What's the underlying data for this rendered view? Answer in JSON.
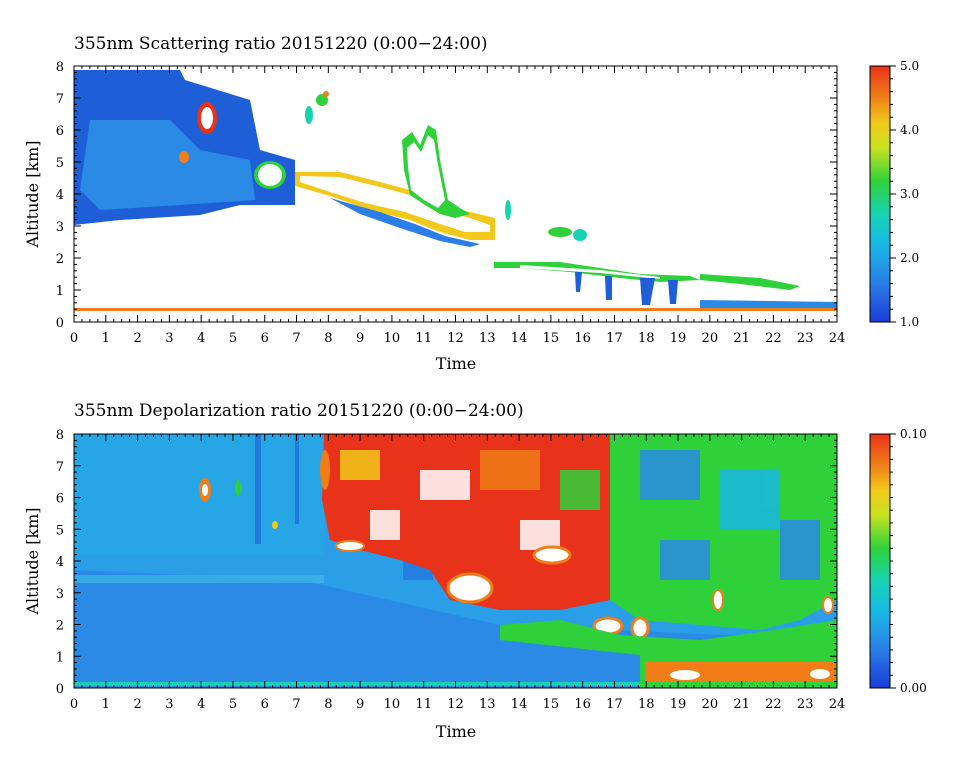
{
  "chart_data": [
    {
      "type": "heatmap",
      "title": "355nm Scattering ratio  20151220 (0:00−24:00)",
      "xlabel": "Time",
      "ylabel": "Altitude [km]",
      "xlim": [
        0,
        24
      ],
      "ylim": [
        0,
        8
      ],
      "x_ticks": [
        "0",
        "1",
        "2",
        "3",
        "4",
        "5",
        "6",
        "7",
        "8",
        "9",
        "10",
        "11",
        "12",
        "13",
        "14",
        "15",
        "16",
        "17",
        "18",
        "19",
        "20",
        "21",
        "22",
        "23",
        "24"
      ],
      "y_ticks": [
        "0",
        "1",
        "2",
        "3",
        "4",
        "5",
        "6",
        "7",
        "8"
      ],
      "colorbar": {
        "range": [
          1.0,
          5.0
        ],
        "tick_labels": [
          "1.0",
          "2.0",
          "3.0",
          "4.0",
          "5.0"
        ],
        "tick_values": [
          1.0,
          2.0,
          3.0,
          4.0,
          5.0
        ]
      }
    },
    {
      "type": "heatmap",
      "title": "355nm Depolarization ratio  20151220 (0:00−24:00)",
      "xlabel": "Time",
      "ylabel": "Altitude [km]",
      "xlim": [
        0,
        24
      ],
      "ylim": [
        0,
        8
      ],
      "x_ticks": [
        "0",
        "1",
        "2",
        "3",
        "4",
        "5",
        "6",
        "7",
        "8",
        "9",
        "10",
        "11",
        "12",
        "13",
        "14",
        "15",
        "16",
        "17",
        "18",
        "19",
        "20",
        "21",
        "22",
        "23",
        "24"
      ],
      "y_ticks": [
        "0",
        "1",
        "2",
        "3",
        "4",
        "5",
        "6",
        "7",
        "8"
      ],
      "colorbar": {
        "range": [
          0.0,
          0.1
        ],
        "tick_labels": [
          "0.00",
          "0.10"
        ],
        "tick_values": [
          0.0,
          0.1
        ]
      }
    }
  ]
}
